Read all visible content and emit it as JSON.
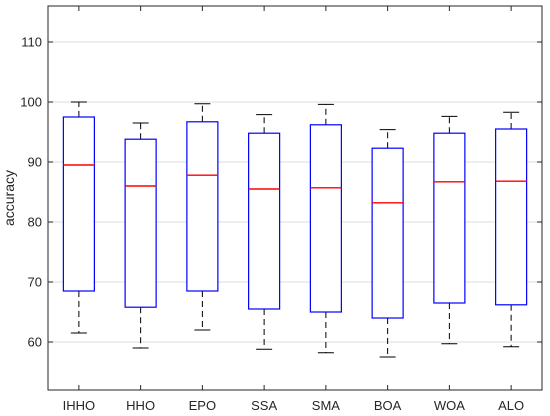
{
  "chart_data": {
    "type": "box",
    "title": "",
    "xlabel": "",
    "ylabel": "accuracy",
    "ylim": [
      52,
      116
    ],
    "yticks": [
      60,
      70,
      80,
      90,
      100,
      110
    ],
    "grid": "horizontal",
    "categories": [
      "IHHO",
      "HHO",
      "EPO",
      "SSA",
      "SMA",
      "BOA",
      "WOA",
      "ALO"
    ],
    "boxes": [
      {
        "label": "IHHO",
        "whisker_low": 61.5,
        "q1": 68.5,
        "median": 89.5,
        "q3": 97.5,
        "whisker_high": 100.0
      },
      {
        "label": "HHO",
        "whisker_low": 59.0,
        "q1": 65.8,
        "median": 86.0,
        "q3": 93.8,
        "whisker_high": 96.5
      },
      {
        "label": "EPO",
        "whisker_low": 62.0,
        "q1": 68.5,
        "median": 87.8,
        "q3": 96.7,
        "whisker_high": 99.7
      },
      {
        "label": "SSA",
        "whisker_low": 58.8,
        "q1": 65.5,
        "median": 85.5,
        "q3": 94.8,
        "whisker_high": 97.9
      },
      {
        "label": "SMA",
        "whisker_low": 58.2,
        "q1": 65.0,
        "median": 85.7,
        "q3": 96.2,
        "whisker_high": 99.6
      },
      {
        "label": "BOA",
        "whisker_low": 57.5,
        "q1": 64.0,
        "median": 83.2,
        "q3": 92.3,
        "whisker_high": 95.4
      },
      {
        "label": "WOA",
        "whisker_low": 59.7,
        "q1": 66.5,
        "median": 86.7,
        "q3": 94.8,
        "whisker_high": 97.6
      },
      {
        "label": "ALO",
        "whisker_low": 59.2,
        "q1": 66.2,
        "median": 86.8,
        "q3": 95.5,
        "whisker_high": 98.3
      }
    ],
    "colors": {
      "box": "#0000ff",
      "median": "#ff0000",
      "whisker": "#000000",
      "grid": "#dedede",
      "axis": "#262626"
    }
  }
}
